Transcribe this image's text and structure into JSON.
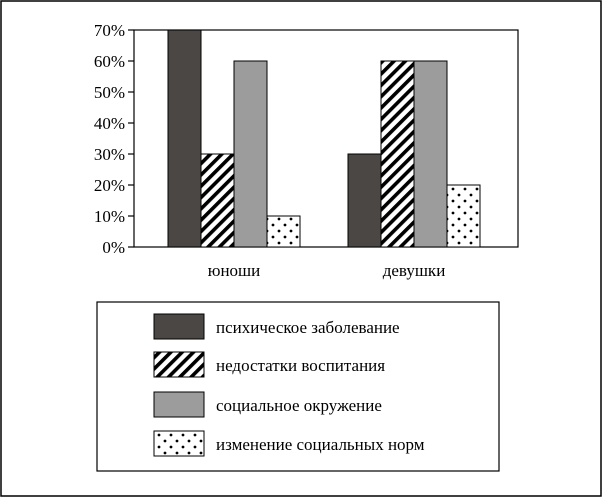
{
  "chart_data": {
    "type": "bar",
    "title": "",
    "xlabel": "",
    "ylabel": "",
    "ylim": [
      0,
      70
    ],
    "y_ticks": [
      0,
      10,
      20,
      30,
      40,
      50,
      60,
      70
    ],
    "y_tick_labels": [
      "0%",
      "10%",
      "20%",
      "30%",
      "40%",
      "50%",
      "60%",
      "70%"
    ],
    "categories": [
      "юноши",
      "девушки"
    ],
    "series": [
      {
        "name": "психическое заболевание",
        "values": [
          70,
          30
        ],
        "fill": "solid-dark",
        "color": "#4a4744"
      },
      {
        "name": "недостатки воспитания",
        "values": [
          30,
          60
        ],
        "fill": "diagonal-hatch",
        "color": "#000000"
      },
      {
        "name": "социальное окружение",
        "values": [
          60,
          60
        ],
        "fill": "solid-gray",
        "color": "#9c9c9c"
      },
      {
        "name": "изменение социальных норм",
        "values": [
          10,
          20
        ],
        "fill": "dots",
        "color": "#000000"
      }
    ],
    "grid": false,
    "legend_position": "bottom"
  }
}
